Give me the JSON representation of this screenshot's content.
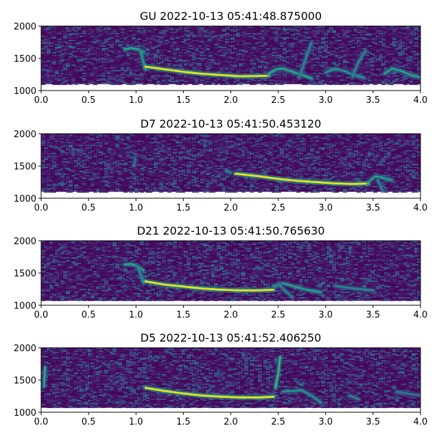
{
  "colors": {
    "colormap": "viridis",
    "background": "#ffffff",
    "axis": "#000000"
  },
  "chart_data": [
    {
      "type": "heatmap",
      "title": "GU 2022-10-13 05:41:48.875000",
      "xlabel": "",
      "ylabel": "",
      "xlim": [
        0.0,
        4.0
      ],
      "ylim": [
        1000,
        2000
      ],
      "xticks": [
        "0.0",
        "0.5",
        "1.0",
        "1.5",
        "2.0",
        "2.5",
        "3.0",
        "3.5",
        "4.0"
      ],
      "yticks": [
        "1000",
        "1500",
        "2000"
      ],
      "grid": false,
      "spectrogram_extent": {
        "y": [
          1100,
          2000
        ]
      },
      "traces": [
        {
          "points": [
            [
              0.88,
              1640
            ],
            [
              0.95,
              1660
            ],
            [
              1.02,
              1640
            ],
            [
              1.08,
              1600
            ]
          ],
          "intensity": 0.6
        },
        {
          "points": [
            [
              1.05,
              1600
            ],
            [
              1.1,
              1330
            ]
          ],
          "intensity": 0.55
        },
        {
          "points": [
            [
              1.1,
              1370
            ],
            [
              1.3,
              1330
            ],
            [
              1.5,
              1290
            ],
            [
              1.7,
              1260
            ],
            [
              1.9,
              1240
            ],
            [
              2.1,
              1220
            ],
            [
              2.3,
              1225
            ],
            [
              2.4,
              1230
            ]
          ],
          "intensity": 0.95
        },
        {
          "points": [
            [
              2.4,
              1260
            ],
            [
              2.48,
              1330
            ],
            [
              2.55,
              1340
            ],
            [
              2.65,
              1290
            ],
            [
              2.75,
              1240
            ],
            [
              2.85,
              1190
            ]
          ],
          "intensity": 0.6
        },
        {
          "points": [
            [
              2.72,
              1200
            ],
            [
              2.78,
              1450
            ],
            [
              2.85,
              1740
            ]
          ],
          "intensity": 0.45
        },
        {
          "points": [
            [
              3.0,
              1280
            ],
            [
              3.1,
              1340
            ],
            [
              3.2,
              1300
            ],
            [
              3.3,
              1240
            ],
            [
              3.4,
              1200
            ]
          ],
          "intensity": 0.5
        },
        {
          "points": [
            [
              3.28,
              1210
            ],
            [
              3.35,
              1450
            ],
            [
              3.42,
              1620
            ]
          ],
          "intensity": 0.45
        },
        {
          "points": [
            [
              3.62,
              1260
            ],
            [
              3.7,
              1340
            ],
            [
              3.8,
              1300
            ],
            [
              3.9,
              1240
            ],
            [
              4.0,
              1200
            ]
          ],
          "intensity": 0.55
        }
      ]
    },
    {
      "type": "heatmap",
      "title": "D7 2022-10-13 05:41:50.453120",
      "xlabel": "",
      "ylabel": "",
      "xlim": [
        0.0,
        4.0
      ],
      "ylim": [
        1000,
        2000
      ],
      "xticks": [
        "0.0",
        "0.5",
        "1.0",
        "1.5",
        "2.0",
        "2.5",
        "3.0",
        "3.5",
        "4.0"
      ],
      "yticks": [
        "1000",
        "1500",
        "2000"
      ],
      "grid": false,
      "spectrogram_extent": {
        "y": [
          1100,
          2000
        ]
      },
      "traces": [
        {
          "points": [
            [
              1.95,
              1420
            ],
            [
              2.0,
              1400
            ]
          ],
          "intensity": 0.45
        },
        {
          "points": [
            [
              2.05,
              1380
            ],
            [
              2.3,
              1340
            ],
            [
              2.5,
              1300
            ],
            [
              2.7,
              1270
            ],
            [
              2.9,
              1250
            ],
            [
              3.1,
              1230
            ],
            [
              3.3,
              1220
            ],
            [
              3.45,
              1230
            ]
          ],
          "intensity": 0.95
        },
        {
          "points": [
            [
              3.45,
              1250
            ],
            [
              3.52,
              1340
            ],
            [
              3.6,
              1320
            ],
            [
              3.7,
              1280
            ]
          ],
          "intensity": 0.55
        },
        {
          "points": [
            [
              3.55,
              1280
            ],
            [
              3.6,
              1120
            ]
          ],
          "intensity": 0.45
        },
        {
          "points": [
            [
              0.98,
              1500
            ],
            [
              0.99,
              1620
            ]
          ],
          "intensity": 0.4
        }
      ]
    },
    {
      "type": "heatmap",
      "title": "D21 2022-10-13 05:41:50.765630",
      "xlabel": "",
      "ylabel": "",
      "xlim": [
        0.0,
        4.0
      ],
      "ylim": [
        1000,
        2000
      ],
      "xticks": [
        "0.0",
        "0.5",
        "1.0",
        "1.5",
        "2.0",
        "2.5",
        "3.0",
        "3.5",
        "4.0"
      ],
      "yticks": [
        "1000",
        "1500",
        "2000"
      ],
      "grid": false,
      "spectrogram_extent": {
        "y": [
          1070,
          2000
        ]
      },
      "traces": [
        {
          "points": [
            [
              0.88,
              1630
            ],
            [
              0.95,
              1640
            ],
            [
              1.02,
              1600
            ],
            [
              1.08,
              1540
            ]
          ],
          "intensity": 0.6
        },
        {
          "points": [
            [
              1.02,
              1600
            ],
            [
              1.08,
              1340
            ]
          ],
          "intensity": 0.5
        },
        {
          "points": [
            [
              1.1,
              1370
            ],
            [
              1.3,
              1320
            ],
            [
              1.5,
              1290
            ],
            [
              1.7,
              1260
            ],
            [
              1.9,
              1240
            ],
            [
              2.1,
              1230
            ],
            [
              2.3,
              1230
            ],
            [
              2.45,
              1240
            ]
          ],
          "intensity": 0.95
        },
        {
          "points": [
            [
              2.45,
              1290
            ],
            [
              2.55,
              1340
            ],
            [
              2.65,
              1300
            ],
            [
              2.8,
              1240
            ],
            [
              2.95,
              1200
            ]
          ],
          "intensity": 0.55
        },
        {
          "points": [
            [
              2.5,
              1330
            ],
            [
              2.65,
              1120
            ]
          ],
          "intensity": 0.45
        },
        {
          "points": [
            [
              3.1,
              1300
            ],
            [
              3.3,
              1260
            ],
            [
              3.5,
              1230
            ]
          ],
          "intensity": 0.45
        }
      ]
    },
    {
      "type": "heatmap",
      "title": "D5 2022-10-13 05:41:52.406250",
      "xlabel": "",
      "ylabel": "",
      "xlim": [
        0.0,
        4.0
      ],
      "ylim": [
        1000,
        2000
      ],
      "xticks": [
        "0.0",
        "0.5",
        "1.0",
        "1.5",
        "2.0",
        "2.5",
        "3.0",
        "3.5",
        "4.0"
      ],
      "yticks": [
        "1000",
        "1500",
        "2000"
      ],
      "grid": false,
      "spectrogram_extent": {
        "y": [
          1070,
          2000
        ]
      },
      "traces": [
        {
          "points": [
            [
              0.03,
              1400
            ],
            [
              0.04,
              1700
            ]
          ],
          "intensity": 0.6
        },
        {
          "points": [
            [
              1.1,
              1380
            ],
            [
              1.3,
              1330
            ],
            [
              1.5,
              1290
            ],
            [
              1.7,
              1260
            ],
            [
              1.9,
              1240
            ],
            [
              2.1,
              1230
            ],
            [
              2.3,
              1230
            ],
            [
              2.45,
              1240
            ]
          ],
          "intensity": 0.95
        },
        {
          "points": [
            [
              2.47,
              1380
            ],
            [
              2.5,
              1600
            ],
            [
              2.52,
              1850
            ]
          ],
          "intensity": 0.65
        },
        {
          "points": [
            [
              2.55,
              1320
            ],
            [
              2.75,
              1340
            ],
            [
              2.85,
              1260
            ],
            [
              2.95,
              1150
            ]
          ],
          "intensity": 0.5
        },
        {
          "points": [
            [
              3.25,
              1260
            ],
            [
              3.35,
              1200
            ]
          ],
          "intensity": 0.45
        },
        {
          "points": [
            [
              3.75,
              1320
            ],
            [
              3.9,
              1280
            ],
            [
              4.0,
              1260
            ]
          ],
          "intensity": 0.4
        }
      ]
    }
  ]
}
